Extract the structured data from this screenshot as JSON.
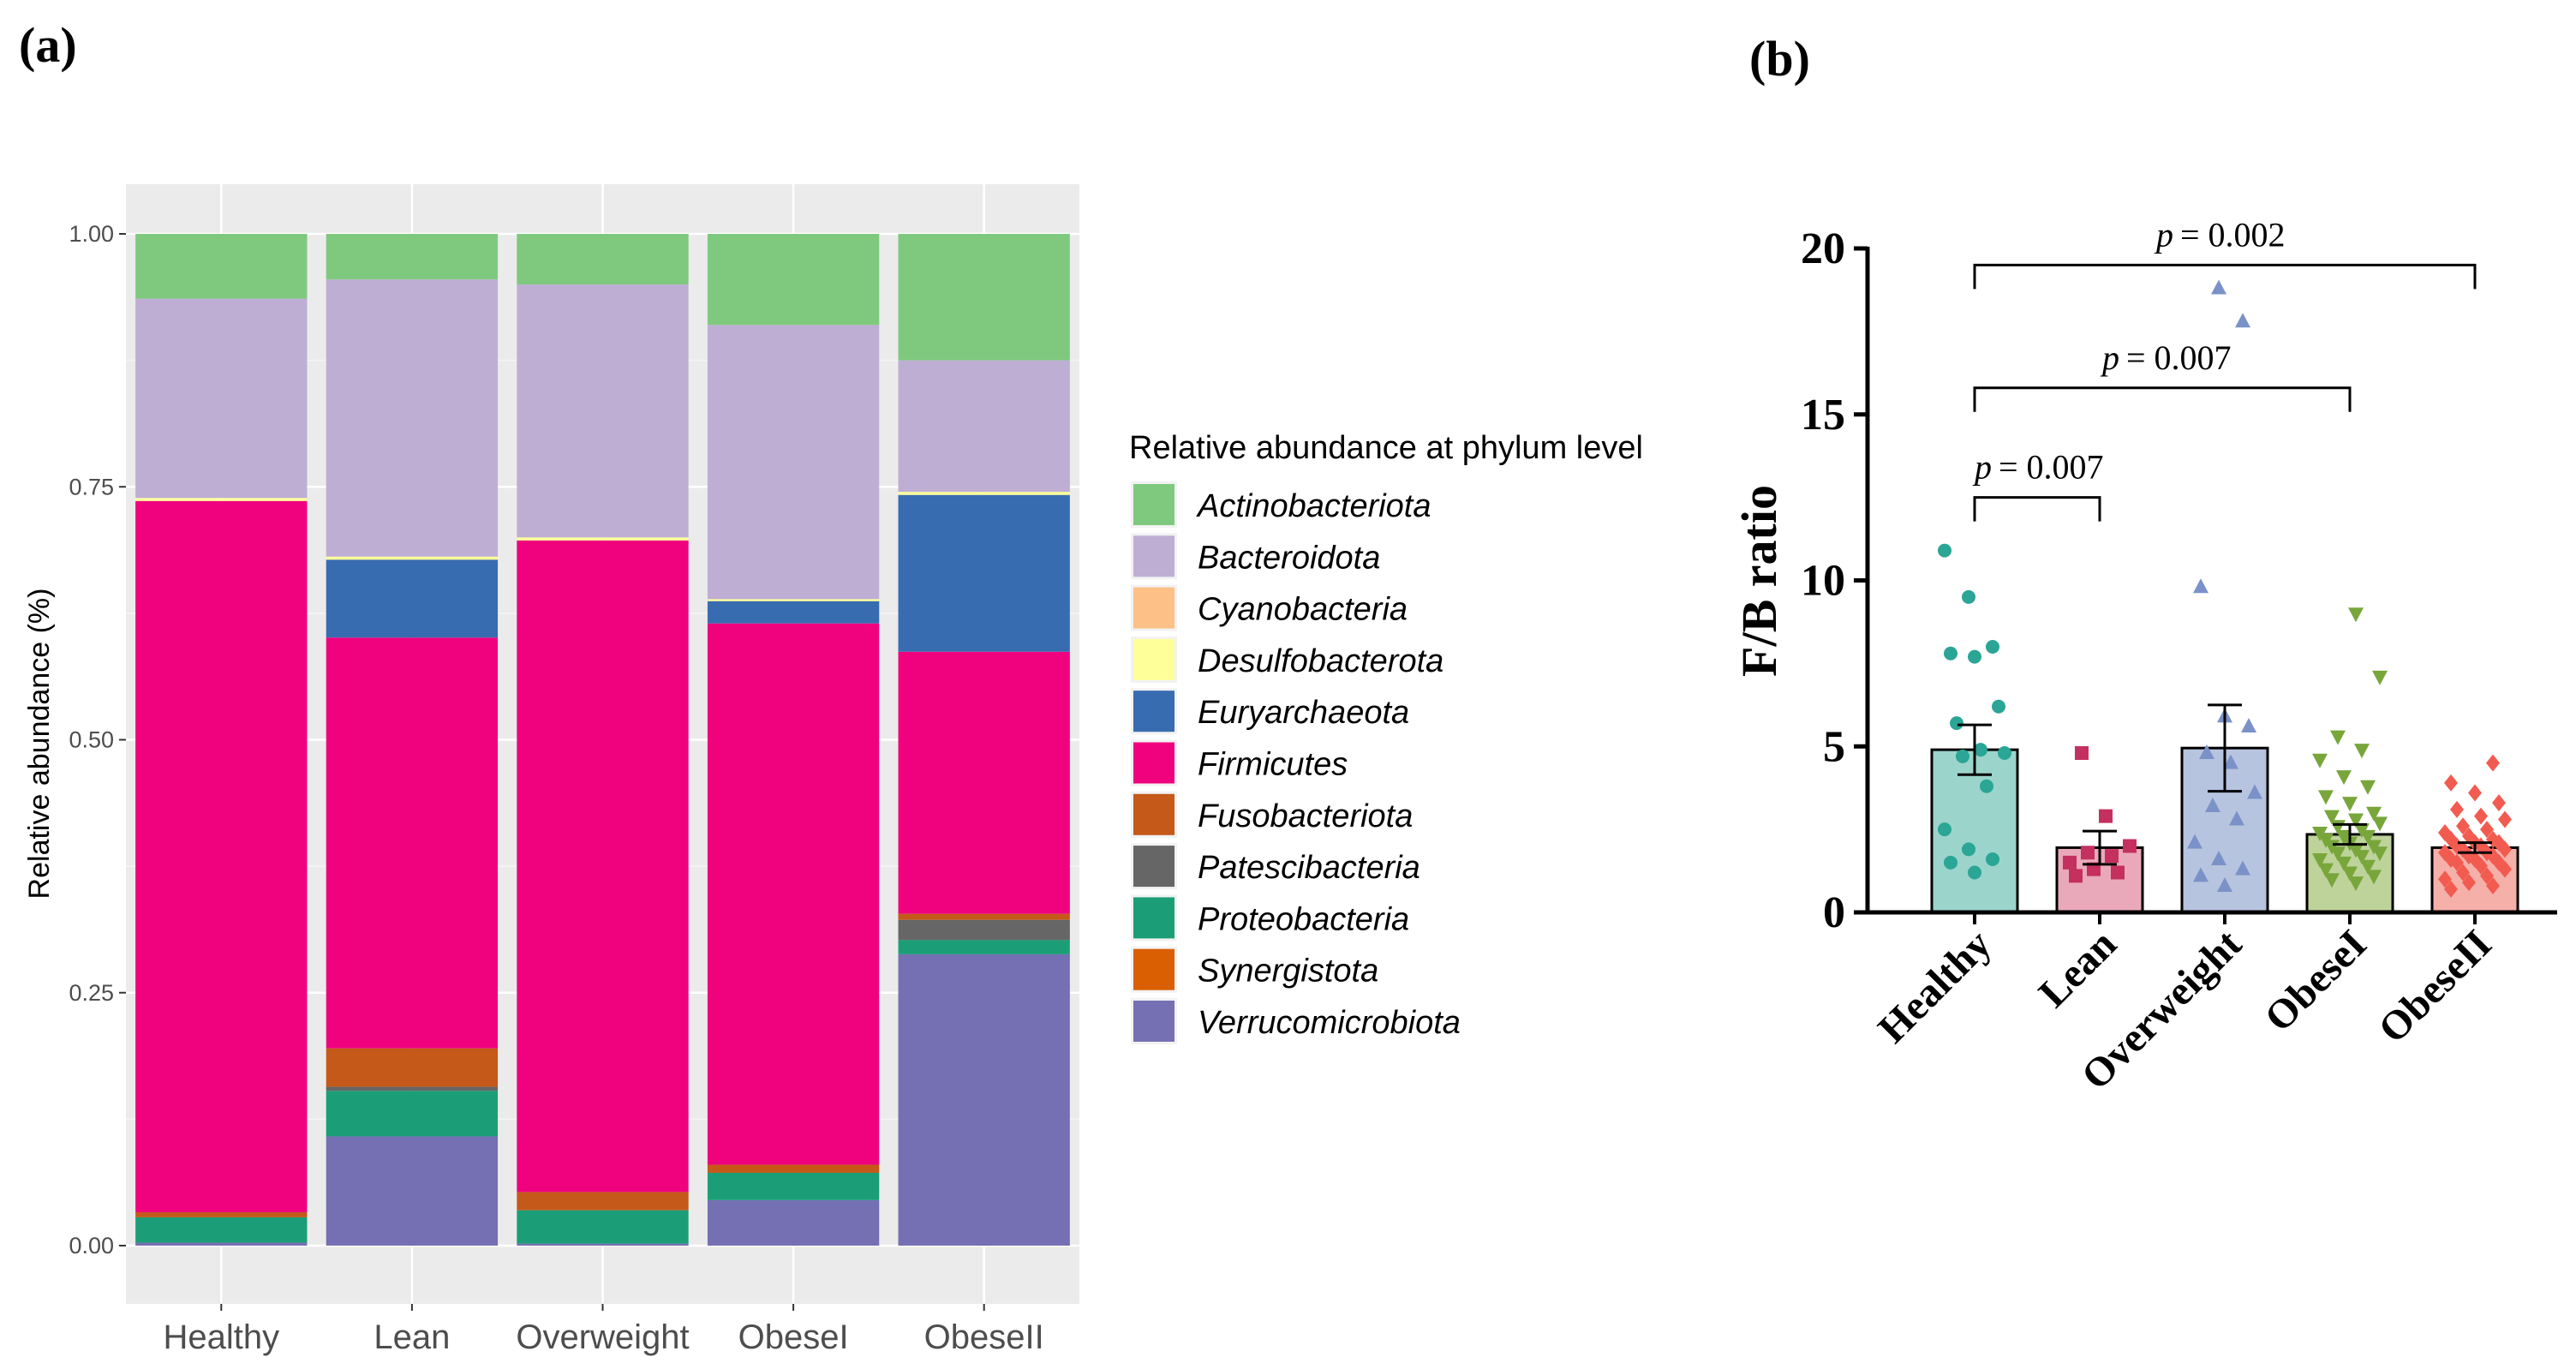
{
  "panels": {
    "a": "(a)",
    "b": "(b)"
  },
  "chart_data": [
    {
      "type": "bar",
      "stacked": true,
      "panel": "(a)",
      "title": "",
      "xlabel": "",
      "ylabel": "Relative abundance (%)",
      "ylim": [
        0,
        1
      ],
      "yticks": [
        "0.00",
        "0.25",
        "0.50",
        "0.75",
        "1.00"
      ],
      "grid": true,
      "categories": [
        "Healthy",
        "Lean",
        "Overweight",
        "ObeseI",
        "ObeseII"
      ],
      "legend": {
        "title": "Relative abundance at phylum level",
        "position": "right"
      },
      "series": [
        {
          "name": "Verrucomicrobiota",
          "color": "#7570b3",
          "values": [
            0.003,
            0.108,
            0.002,
            0.045,
            0.288
          ]
        },
        {
          "name": "Synergistota",
          "color": "#d95f02",
          "values": [
            0.0,
            0.0,
            0.0,
            0.0,
            0.0
          ]
        },
        {
          "name": "Proteobacteria",
          "color": "#1b9e77",
          "values": [
            0.025,
            0.045,
            0.033,
            0.027,
            0.014
          ]
        },
        {
          "name": "Patescibacteria",
          "color": "#666666",
          "values": [
            0.0,
            0.004,
            0.0,
            0.0,
            0.02
          ]
        },
        {
          "name": "Fusobacteriota",
          "color": "#c4591a",
          "values": [
            0.005,
            0.038,
            0.018,
            0.008,
            0.006
          ]
        },
        {
          "name": "Firmicutes",
          "color": "#f0027f",
          "values": [
            0.703,
            0.406,
            0.644,
            0.535,
            0.259
          ]
        },
        {
          "name": "Euryarchaeota",
          "color": "#386cb0",
          "values": [
            0.0,
            0.077,
            0.0,
            0.022,
            0.155
          ]
        },
        {
          "name": "Desulfobacterota",
          "color": "#ffff99",
          "values": [
            0.003,
            0.003,
            0.003,
            0.002,
            0.003
          ]
        },
        {
          "name": "Cyanobacteria",
          "color": "#fdc086",
          "values": [
            0.0,
            0.0,
            0.0,
            0.0,
            0.0
          ]
        },
        {
          "name": "Bacteroidota",
          "color": "#beaed4",
          "values": [
            0.197,
            0.274,
            0.25,
            0.271,
            0.13
          ]
        },
        {
          "name": "Actinobacteriota",
          "color": "#7fc97f",
          "values": [
            0.064,
            0.045,
            0.05,
            0.09,
            0.125
          ]
        }
      ],
      "legend_order": [
        "Actinobacteriota",
        "Bacteroidota",
        "Cyanobacteria",
        "Desulfobacterota",
        "Euryarchaeota",
        "Firmicutes",
        "Fusobacteriota",
        "Patescibacteria",
        "Proteobacteria",
        "Synergistota",
        "Verrucomicrobiota"
      ]
    },
    {
      "type": "bar",
      "panel": "(b)",
      "title": "",
      "xlabel": "",
      "ylabel": "F/B ratio",
      "ylim": [
        0,
        20
      ],
      "yticks": [
        "0",
        "5",
        "10",
        "15",
        "20"
      ],
      "grid": false,
      "categories": [
        "Healthy",
        "Lean",
        "Overweight",
        "ObeseI",
        "ObeseII"
      ],
      "means": [
        4.9,
        1.95,
        4.95,
        2.35,
        1.95
      ],
      "errors": [
        0.75,
        0.5,
        1.3,
        0.3,
        0.15
      ],
      "fill_colors": [
        "#9bd4cb",
        "#eaa9bb",
        "#b7c4df",
        "#bdd39a",
        "#f6b0aa"
      ],
      "point_colors": [
        "#2aa596",
        "#c4305f",
        "#7a92c8",
        "#78a63b",
        "#f25b50"
      ],
      "point_shapes": [
        "circle",
        "square",
        "triangle",
        "triangle-down",
        "diamond"
      ],
      "points": [
        [
          10.9,
          9.5,
          8.0,
          7.8,
          7.7,
          6.2,
          5.7,
          4.9,
          4.8,
          4.7,
          3.8,
          2.5,
          1.9,
          1.6,
          1.5,
          1.2
        ],
        [
          4.8,
          2.9,
          2.0,
          1.8,
          1.7,
          1.5,
          1.3,
          1.2,
          1.1
        ],
        [
          18.8,
          17.8,
          9.8,
          5.9,
          5.6,
          4.8,
          4.5,
          3.6,
          3.2,
          2.8,
          2.1,
          1.6,
          1.3,
          1.1,
          0.8
        ],
        [
          9.0,
          7.1,
          5.3,
          4.9,
          4.6,
          4.1,
          3.8,
          3.5,
          3.3,
          3.0,
          2.9,
          2.8,
          2.7,
          2.6,
          2.5,
          2.4,
          2.3,
          2.3,
          2.2,
          2.1,
          2.0,
          2.0,
          1.9,
          1.8,
          1.8,
          1.7,
          1.6,
          1.5,
          1.4,
          1.3,
          1.2,
          1.1,
          1.0,
          0.9
        ],
        [
          4.5,
          3.9,
          3.6,
          3.3,
          3.1,
          2.9,
          2.8,
          2.6,
          2.5,
          2.4,
          2.3,
          2.2,
          2.2,
          2.1,
          2.1,
          2.0,
          2.0,
          1.9,
          1.9,
          1.8,
          1.8,
          1.7,
          1.7,
          1.6,
          1.6,
          1.5,
          1.5,
          1.4,
          1.3,
          1.2,
          1.1,
          1.0,
          0.9,
          0.8,
          0.7
        ]
      ],
      "annotations": [
        {
          "from": "Healthy",
          "to": "Lean",
          "level": 12.5,
          "text": "= 0.007"
        },
        {
          "from": "Healthy",
          "to": "ObeseI",
          "level": 15.8,
          "text": "= 0.007"
        },
        {
          "from": "Healthy",
          "to": "ObeseII",
          "level": 19.5,
          "text": "= 0.002"
        }
      ],
      "annotation_prefix": "p"
    }
  ]
}
